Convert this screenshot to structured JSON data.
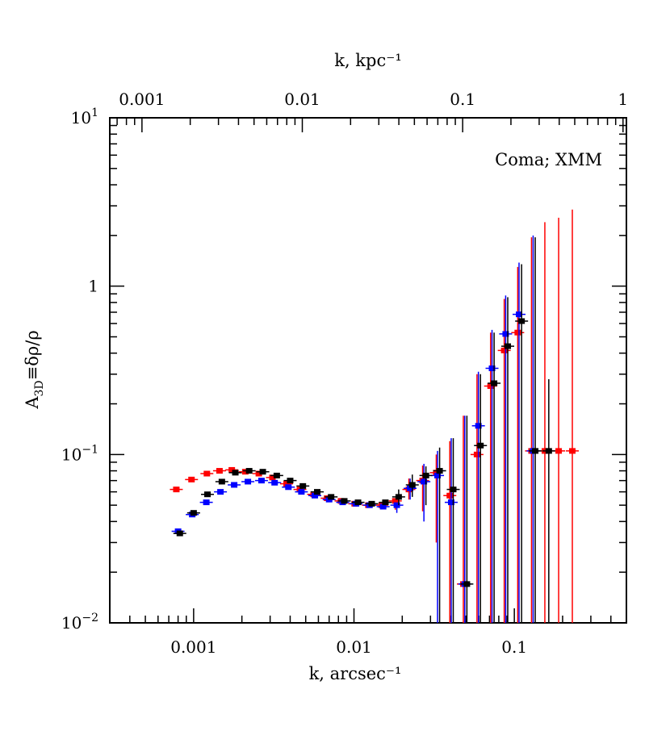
{
  "chart_data": {
    "type": "scatter",
    "title": "",
    "annotation": "Coma; XMM",
    "xlabel": "k, arcsec⁻¹",
    "x2label": "k, kpc⁻¹",
    "ylabel": "A₃ᴅ≡δρ/ρ",
    "ylabel_parts": {
      "main": "A",
      "sub": "3D",
      "rest": "≡δρ/ρ"
    },
    "xscale": "log",
    "yscale": "log",
    "xlim": [
      0.0003,
      0.5
    ],
    "ylim": [
      0.01,
      10
    ],
    "x_ticks": [
      {
        "value": 0.001,
        "label": "0.001"
      },
      {
        "value": 0.01,
        "label": "0.01"
      },
      {
        "value": 0.1,
        "label": "0.1"
      }
    ],
    "x2_ticks": [
      {
        "value": 0.001,
        "label": "0.001"
      },
      {
        "value": 0.01,
        "label": "0.01"
      },
      {
        "value": 0.1,
        "label": "0.1"
      },
      {
        "value": 1,
        "label": "1"
      }
    ],
    "x2_per_x": 2.1,
    "y_ticks": [
      {
        "value": 0.01,
        "base": "10",
        "exp": "−2"
      },
      {
        "value": 0.1,
        "base": "10",
        "exp": "−1"
      },
      {
        "value": 1,
        "base": "1",
        "exp": ""
      },
      {
        "value": 10,
        "base": "10",
        "exp": "1"
      }
    ],
    "grid": false,
    "series": [
      {
        "color": "#ff0000",
        "points": [
          {
            "x": 0.00078,
            "y": 0.062
          },
          {
            "x": 0.00097,
            "y": 0.071
          },
          {
            "x": 0.00121,
            "y": 0.077
          },
          {
            "x": 0.00145,
            "y": 0.08
          },
          {
            "x": 0.00173,
            "y": 0.081
          },
          {
            "x": 0.0021,
            "y": 0.079
          },
          {
            "x": 0.00255,
            "y": 0.077
          },
          {
            "x": 0.0031,
            "y": 0.073
          },
          {
            "x": 0.0038,
            "y": 0.067
          },
          {
            "x": 0.0046,
            "y": 0.062
          },
          {
            "x": 0.0056,
            "y": 0.058
          },
          {
            "x": 0.0068,
            "y": 0.055
          },
          {
            "x": 0.0083,
            "y": 0.053
          },
          {
            "x": 0.0101,
            "y": 0.051
          },
          {
            "x": 0.0123,
            "y": 0.05
          },
          {
            "x": 0.0149,
            "y": 0.05
          },
          {
            "x": 0.0181,
            "y": 0.053,
            "err_lo": 0.047
          },
          {
            "x": 0.022,
            "y": 0.062,
            "err_lo": 0.054,
            "err_hi": 0.072
          },
          {
            "x": 0.0268,
            "y": 0.07,
            "err_lo": 0.046,
            "err_hi": 0.086
          },
          {
            "x": 0.0326,
            "y": 0.078,
            "err_lo": 0.03,
            "err_hi": 0.1
          },
          {
            "x": 0.0396,
            "y": 0.057,
            "err_lo": 0.01,
            "err_hi": 0.12
          },
          {
            "x": 0.0481,
            "y": 0.017,
            "err_lo": 0.01,
            "err_hi": 0.17
          },
          {
            "x": 0.0585,
            "y": 0.1,
            "err_lo": 0.01,
            "err_hi": 0.3
          },
          {
            "x": 0.0711,
            "y": 0.255,
            "err_lo": 0.01,
            "err_hi": 0.53
          },
          {
            "x": 0.0865,
            "y": 0.415,
            "err_lo": 0.01,
            "err_hi": 0.84
          },
          {
            "x": 0.105,
            "y": 0.53,
            "err_lo": 0.01,
            "err_hi": 1.3
          },
          {
            "x": 0.128,
            "y": 0.105,
            "err_lo": 0.01,
            "err_hi": 1.95
          },
          {
            "x": 0.155,
            "y": 0.105,
            "err_lo": 0.01,
            "err_hi": 2.4
          },
          {
            "x": 0.189,
            "y": 0.105,
            "err_lo": 0.01,
            "err_hi": 2.55
          },
          {
            "x": 0.23,
            "y": 0.105,
            "err_lo": 0.01,
            "err_hi": 2.85
          }
        ]
      },
      {
        "color": "#0000ff",
        "points": [
          {
            "x": 0.0008,
            "y": 0.035
          },
          {
            "x": 0.00098,
            "y": 0.044
          },
          {
            "x": 0.0012,
            "y": 0.052
          },
          {
            "x": 0.00147,
            "y": 0.06
          },
          {
            "x": 0.00179,
            "y": 0.066
          },
          {
            "x": 0.00218,
            "y": 0.069
          },
          {
            "x": 0.00265,
            "y": 0.07
          },
          {
            "x": 0.0032,
            "y": 0.068
          },
          {
            "x": 0.0039,
            "y": 0.064
          },
          {
            "x": 0.0047,
            "y": 0.06
          },
          {
            "x": 0.0057,
            "y": 0.057
          },
          {
            "x": 0.007,
            "y": 0.054
          },
          {
            "x": 0.0085,
            "y": 0.052
          },
          {
            "x": 0.0103,
            "y": 0.051
          },
          {
            "x": 0.0125,
            "y": 0.05
          },
          {
            "x": 0.0152,
            "y": 0.049
          },
          {
            "x": 0.0185,
            "y": 0.05,
            "err_lo": 0.045
          },
          {
            "x": 0.0224,
            "y": 0.063,
            "err_lo": 0.054,
            "err_hi": 0.072
          },
          {
            "x": 0.0273,
            "y": 0.069,
            "err_lo": 0.04,
            "err_hi": 0.088
          },
          {
            "x": 0.0332,
            "y": 0.075,
            "err_lo": 0.01,
            "err_hi": 0.105
          },
          {
            "x": 0.0404,
            "y": 0.052,
            "err_lo": 0.01,
            "err_hi": 0.125
          },
          {
            "x": 0.0491,
            "y": 0.017,
            "err_lo": 0.01,
            "err_hi": 0.17
          },
          {
            "x": 0.0597,
            "y": 0.148,
            "err_lo": 0.01,
            "err_hi": 0.31
          },
          {
            "x": 0.0726,
            "y": 0.325,
            "err_lo": 0.01,
            "err_hi": 0.55
          },
          {
            "x": 0.0883,
            "y": 0.52,
            "err_lo": 0.01,
            "err_hi": 0.88
          },
          {
            "x": 0.107,
            "y": 0.68,
            "err_lo": 0.01,
            "err_hi": 1.38
          },
          {
            "x": 0.131,
            "y": 0.105,
            "err_lo": 0.01,
            "err_hi": 2.0
          }
        ]
      },
      {
        "color": "#000000",
        "points": [
          {
            "x": 0.00082,
            "y": 0.034
          },
          {
            "x": 0.001,
            "y": 0.045
          },
          {
            "x": 0.00122,
            "y": 0.058
          },
          {
            "x": 0.0015,
            "y": 0.069
          },
          {
            "x": 0.00182,
            "y": 0.078
          },
          {
            "x": 0.00222,
            "y": 0.08
          },
          {
            "x": 0.0027,
            "y": 0.079
          },
          {
            "x": 0.0033,
            "y": 0.075
          },
          {
            "x": 0.004,
            "y": 0.07
          },
          {
            "x": 0.0048,
            "y": 0.065
          },
          {
            "x": 0.0059,
            "y": 0.06
          },
          {
            "x": 0.0072,
            "y": 0.056
          },
          {
            "x": 0.0087,
            "y": 0.053
          },
          {
            "x": 0.0106,
            "y": 0.052
          },
          {
            "x": 0.0129,
            "y": 0.051
          },
          {
            "x": 0.0157,
            "y": 0.052
          },
          {
            "x": 0.019,
            "y": 0.056,
            "err_lo": 0.05,
            "err_hi": 0.062
          },
          {
            "x": 0.0231,
            "y": 0.066,
            "err_lo": 0.056,
            "err_hi": 0.076
          },
          {
            "x": 0.0281,
            "y": 0.075,
            "err_lo": 0.05,
            "err_hi": 0.085
          },
          {
            "x": 0.0342,
            "y": 0.08,
            "err_lo": 0.01,
            "err_hi": 0.11
          },
          {
            "x": 0.0416,
            "y": 0.062,
            "err_lo": 0.01,
            "err_hi": 0.125
          },
          {
            "x": 0.0506,
            "y": 0.017,
            "err_lo": 0.01,
            "err_hi": 0.17
          },
          {
            "x": 0.0615,
            "y": 0.113,
            "err_lo": 0.01,
            "err_hi": 0.3
          },
          {
            "x": 0.0748,
            "y": 0.265,
            "err_lo": 0.01,
            "err_hi": 0.53
          },
          {
            "x": 0.091,
            "y": 0.44,
            "err_lo": 0.01,
            "err_hi": 0.86
          },
          {
            "x": 0.111,
            "y": 0.62,
            "err_lo": 0.01,
            "err_hi": 1.35
          },
          {
            "x": 0.135,
            "y": 0.105,
            "err_lo": 0.01,
            "err_hi": 1.95
          },
          {
            "x": 0.164,
            "y": 0.105,
            "err_lo": 0.01,
            "err_hi": 0.28
          }
        ]
      }
    ]
  }
}
